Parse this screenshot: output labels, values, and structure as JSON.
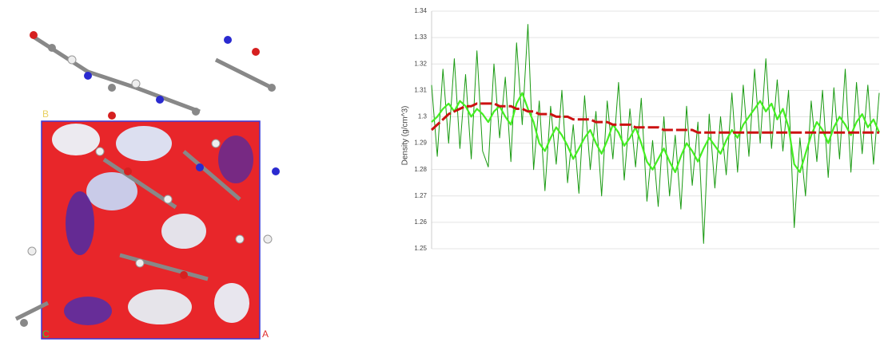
{
  "molecule": {
    "cell_labels": [
      "B",
      "C",
      "A"
    ]
  },
  "chart_data": {
    "type": "line",
    "y_label": "Density (g/cm^3)",
    "ylim": [
      1.25,
      1.34
    ],
    "yticks": [
      1.25,
      1.26,
      1.27,
      1.28,
      1.29,
      1.3,
      1.31,
      1.32,
      1.33,
      1.34
    ],
    "grid": true,
    "series": [
      {
        "color": "#1a9a12",
        "values": [
          1.312,
          1.285,
          1.318,
          1.29,
          1.322,
          1.288,
          1.316,
          1.284,
          1.325,
          1.287,
          1.281,
          1.32,
          1.292,
          1.315,
          1.283,
          1.328,
          1.297,
          1.335,
          1.28,
          1.306,
          1.272,
          1.304,
          1.282,
          1.31,
          1.275,
          1.297,
          1.271,
          1.308,
          1.28,
          1.302,
          1.27,
          1.306,
          1.284,
          1.313,
          1.276,
          1.303,
          1.281,
          1.307,
          1.268,
          1.291,
          1.266,
          1.3,
          1.27,
          1.293,
          1.265,
          1.304,
          1.274,
          1.298,
          1.252,
          1.301,
          1.273,
          1.3,
          1.278,
          1.309,
          1.279,
          1.312,
          1.285,
          1.318,
          1.29,
          1.322,
          1.288,
          1.314,
          1.287,
          1.31,
          1.258,
          1.292,
          1.27,
          1.306,
          1.283,
          1.31,
          1.277,
          1.311,
          1.284,
          1.318,
          1.279,
          1.313,
          1.286,
          1.312,
          1.282,
          1.309
        ]
      },
      {
        "color": "#44ee22",
        "values": [
          1.298,
          1.3,
          1.303,
          1.305,
          1.302,
          1.306,
          1.304,
          1.3,
          1.303,
          1.301,
          1.298,
          1.302,
          1.304,
          1.3,
          1.297,
          1.305,
          1.309,
          1.303,
          1.298,
          1.29,
          1.287,
          1.292,
          1.296,
          1.293,
          1.289,
          1.284,
          1.288,
          1.292,
          1.295,
          1.29,
          1.286,
          1.291,
          1.297,
          1.294,
          1.289,
          1.292,
          1.296,
          1.29,
          1.283,
          1.28,
          1.284,
          1.288,
          1.283,
          1.279,
          1.285,
          1.29,
          1.287,
          1.283,
          1.288,
          1.292,
          1.289,
          1.286,
          1.291,
          1.295,
          1.292,
          1.297,
          1.3,
          1.303,
          1.306,
          1.302,
          1.305,
          1.299,
          1.303,
          1.296,
          1.282,
          1.279,
          1.286,
          1.293,
          1.298,
          1.295,
          1.29,
          1.296,
          1.3,
          1.297,
          1.293,
          1.298,
          1.301,
          1.296,
          1.299,
          1.294
        ]
      },
      {
        "color": "#cc1111",
        "values": [
          1.295,
          1.297,
          1.299,
          1.301,
          1.302,
          1.303,
          1.304,
          1.304,
          1.305,
          1.305,
          1.305,
          1.305,
          1.304,
          1.304,
          1.304,
          1.303,
          1.303,
          1.302,
          1.302,
          1.301,
          1.301,
          1.301,
          1.3,
          1.3,
          1.3,
          1.299,
          1.299,
          1.299,
          1.299,
          1.298,
          1.298,
          1.298,
          1.297,
          1.297,
          1.297,
          1.297,
          1.296,
          1.296,
          1.296,
          1.296,
          1.296,
          1.295,
          1.295,
          1.295,
          1.295,
          1.295,
          1.295,
          1.294,
          1.294,
          1.294,
          1.294,
          1.294,
          1.294,
          1.294,
          1.294,
          1.294,
          1.294,
          1.294,
          1.294,
          1.294,
          1.294,
          1.294,
          1.294,
          1.294,
          1.294,
          1.294,
          1.294,
          1.294,
          1.294,
          1.294,
          1.294,
          1.294,
          1.294,
          1.294,
          1.294,
          1.294,
          1.294,
          1.294,
          1.294,
          1.294
        ]
      }
    ]
  }
}
